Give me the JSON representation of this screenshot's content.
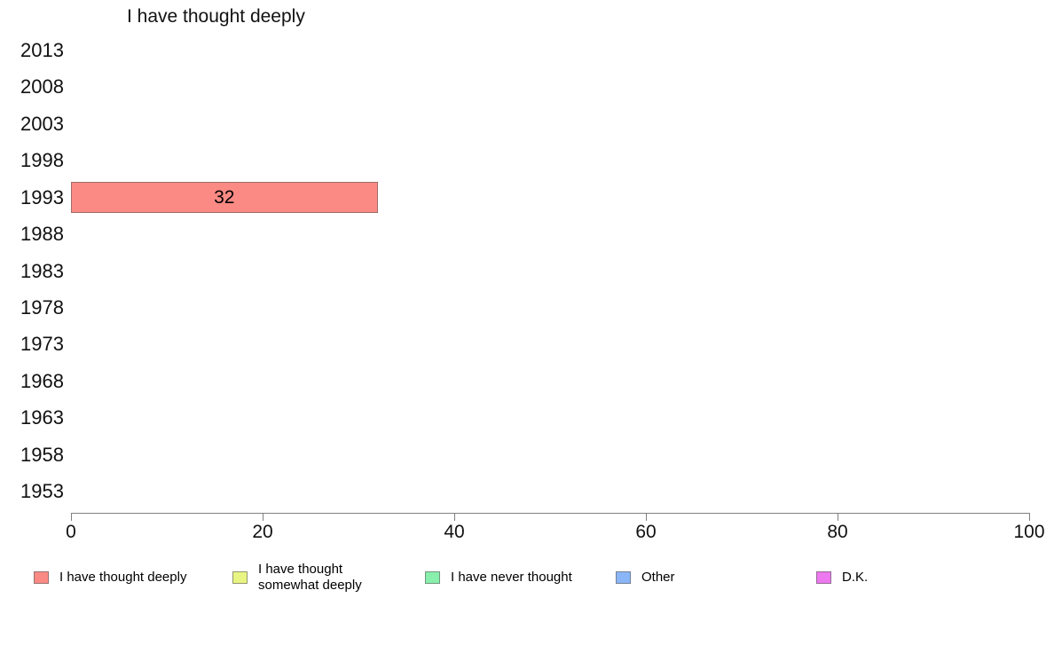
{
  "chart_data": {
    "type": "bar",
    "orientation": "horizontal",
    "title": "I have thought deeply",
    "categories": [
      "2013",
      "2008",
      "2003",
      "1998",
      "1993",
      "1988",
      "1983",
      "1978",
      "1973",
      "1968",
      "1963",
      "1958",
      "1953"
    ],
    "values": [
      null,
      null,
      null,
      null,
      32,
      null,
      null,
      null,
      null,
      null,
      null,
      null,
      null
    ],
    "bar_labels": [
      null,
      null,
      null,
      null,
      "32",
      null,
      null,
      null,
      null,
      null,
      null,
      null,
      null
    ],
    "bar_color": "#FB8A84",
    "xlim": [
      0,
      100
    ],
    "x_ticks": [
      "0",
      "20",
      "40",
      "60",
      "80",
      "100"
    ],
    "x_tick_values": [
      0,
      20,
      40,
      60,
      80,
      100
    ],
    "grid": false,
    "axis_color": "#808080",
    "legend_position": "bottom",
    "legend": [
      {
        "label": "I have thought deeply",
        "color": "#FB8A84"
      },
      {
        "label": "I have thought somewhat deeply",
        "color": "#E9F583"
      },
      {
        "label": "I have never thought",
        "color": "#89EFAD"
      },
      {
        "label": "Other",
        "color": "#8AB6F7"
      },
      {
        "label": "D.K.",
        "color": "#ED78EF"
      }
    ]
  }
}
